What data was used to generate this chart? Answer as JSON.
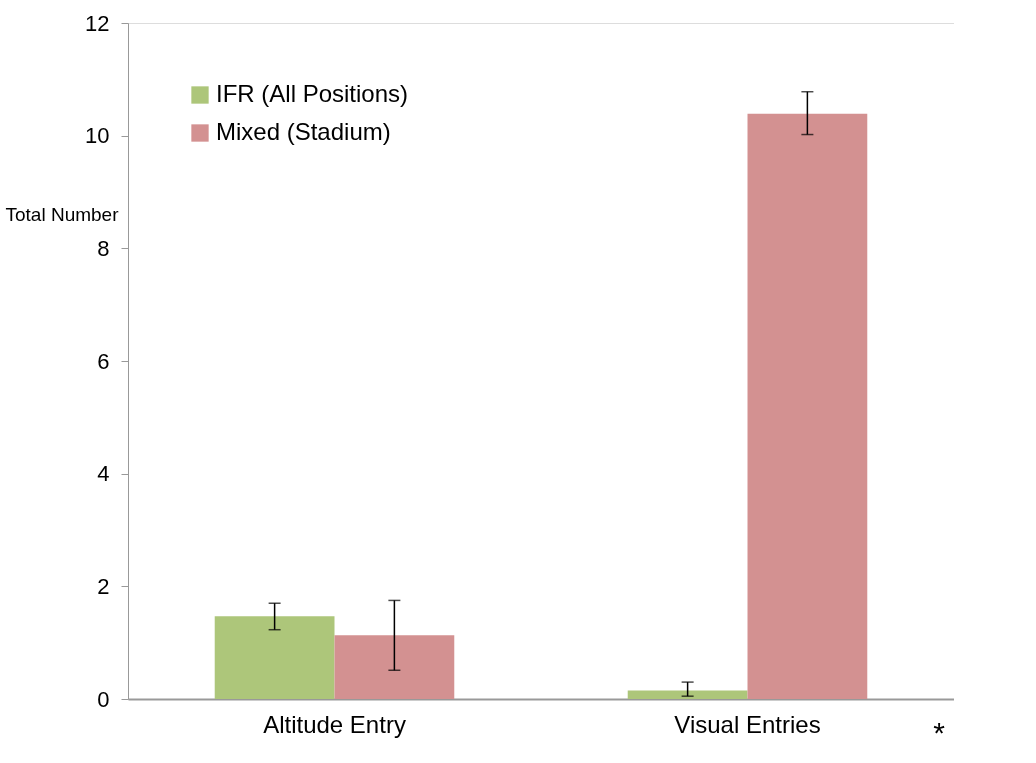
{
  "chart_data": {
    "type": "bar",
    "ylabel": "Total Number",
    "categories": [
      "Altitude Entry",
      "Visual Entries"
    ],
    "series": [
      {
        "name": "IFR (All Positions)",
        "color": "#adc67a",
        "values": [
          1.47,
          0.15
        ],
        "errors": [
          [
            1.23,
            1.7
          ],
          [
            0.05,
            0.3
          ]
        ]
      },
      {
        "name": "Mixed (Stadium)",
        "color": "#d39191",
        "values": [
          1.13,
          10.39
        ],
        "errors": [
          [
            0.51,
            1.75
          ],
          [
            10.02,
            10.78
          ]
        ]
      }
    ],
    "ylim": [
      0,
      12
    ],
    "yticks": [
      0,
      2,
      4,
      6,
      8,
      10,
      12
    ],
    "grid": false,
    "legend": "top left",
    "annotations": [
      "*"
    ]
  }
}
